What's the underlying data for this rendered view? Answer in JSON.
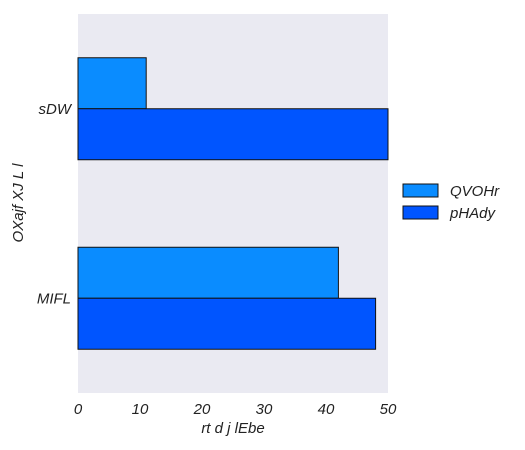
{
  "chart_data": {
    "type": "bar",
    "orientation": "horizontal",
    "categories": [
      "sDW",
      "MIFL"
    ],
    "series": [
      {
        "name": "QVOHr",
        "values": [
          11,
          42
        ],
        "color": "#0a8cff"
      },
      {
        "name": "pHAdy",
        "values": [
          50,
          48
        ],
        "color": "#0055ff"
      }
    ],
    "xlabel": "rt d j lEbe",
    "ylabel": "OXajf XJ L l",
    "xlim": [
      0,
      50
    ],
    "xticks": [
      0,
      10,
      20,
      30,
      40,
      50
    ],
    "grid": false,
    "legend_position": "right",
    "plot_background": "#eaeaf2"
  }
}
